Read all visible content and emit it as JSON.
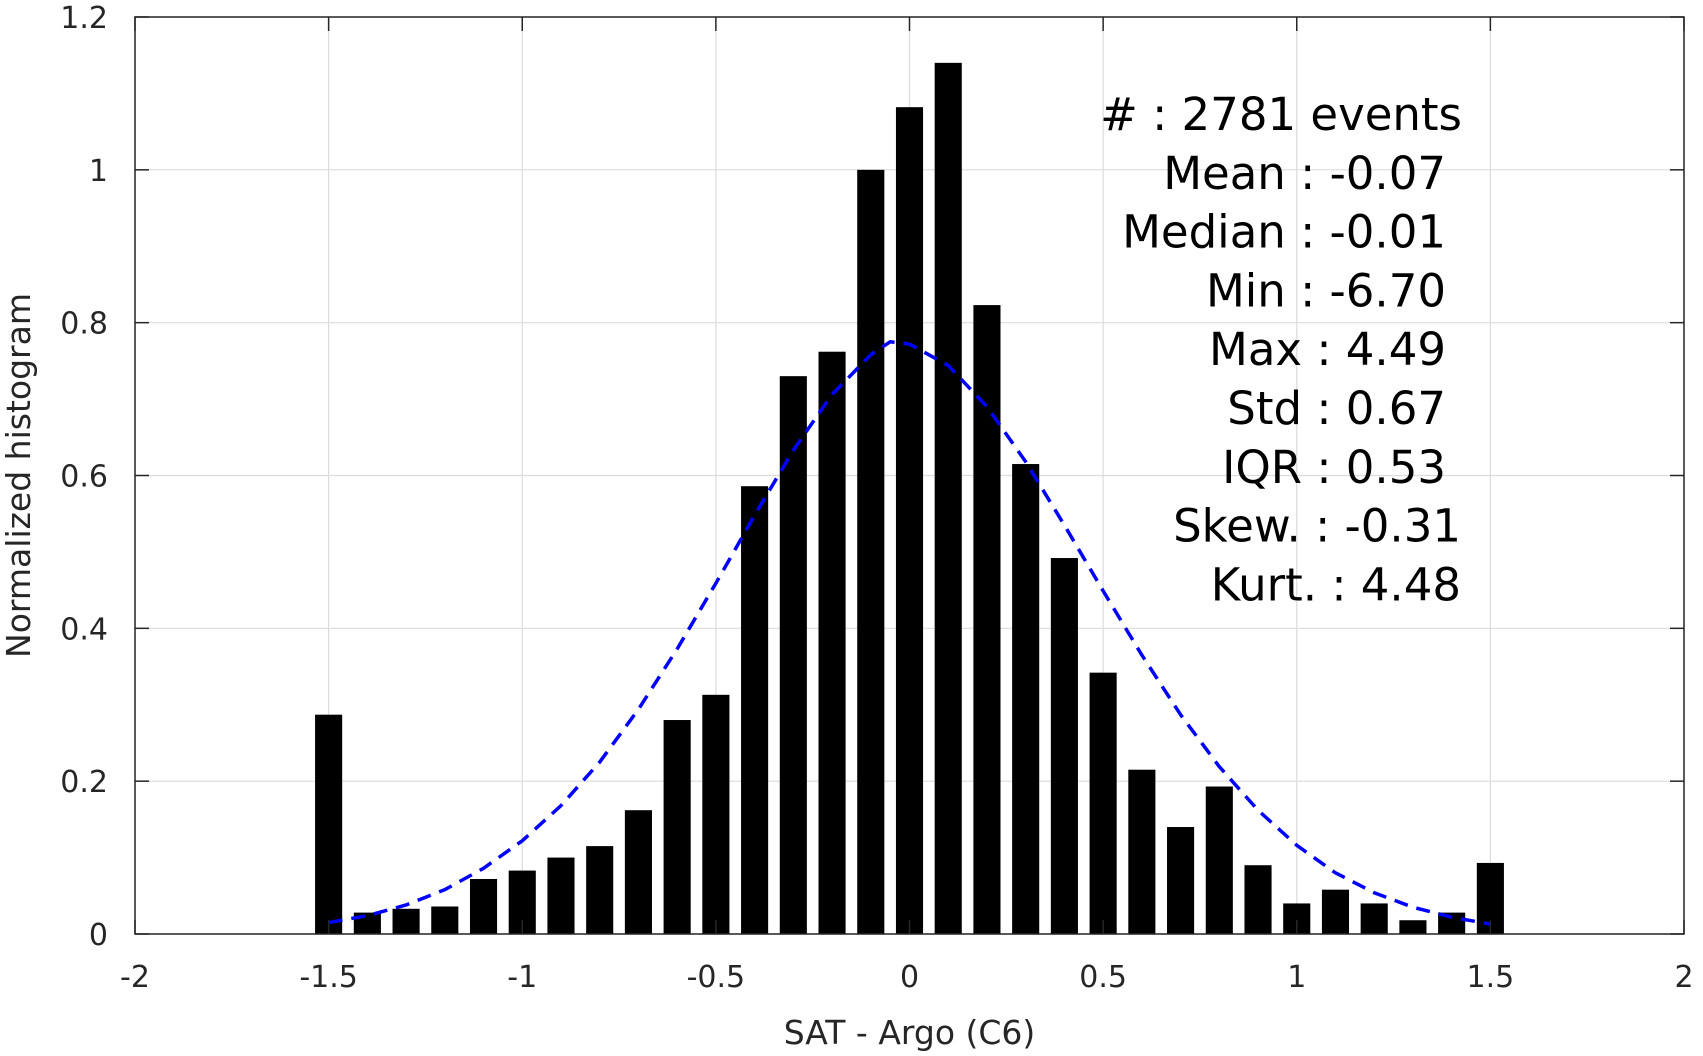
{
  "chart_data": {
    "type": "bar",
    "xlabel": "SAT - Argo (C6)",
    "ylabel": "Normalized histogram",
    "xlim": [
      -2,
      2
    ],
    "ylim": [
      0,
      1.2
    ],
    "grid": true,
    "x_ticks": [
      -2,
      -1.5,
      -1,
      -0.5,
      0,
      0.5,
      1,
      1.5,
      2
    ],
    "x_tick_labels": [
      "-2",
      "-1.5",
      "-1",
      "-0.5",
      "0",
      "0.5",
      "1",
      "1.5",
      "2"
    ],
    "y_ticks": [
      0,
      0.2,
      0.4,
      0.6,
      0.8,
      1,
      1.2
    ],
    "y_tick_labels": [
      "0",
      "0.2",
      "0.4",
      "0.6",
      "0.8",
      "1",
      "1.2"
    ],
    "bar_width": 0.07,
    "bar_color": "#000000",
    "series": [
      {
        "type": "bar",
        "x": [
          -1.5,
          -1.4,
          -1.3,
          -1.2,
          -1.1,
          -1.0,
          -0.9,
          -0.8,
          -0.7,
          -0.6,
          -0.5,
          -0.4,
          -0.3,
          -0.2,
          -0.1,
          0.0,
          0.1,
          0.2,
          0.3,
          0.4,
          0.5,
          0.6,
          0.7,
          0.8,
          0.9,
          1.0,
          1.1,
          1.2,
          1.3,
          1.4,
          1.5
        ],
        "values": [
          0.287,
          0.028,
          0.033,
          0.036,
          0.072,
          0.083,
          0.1,
          0.115,
          0.162,
          0.28,
          0.313,
          0.586,
          0.73,
          0.762,
          1.0,
          1.082,
          1.14,
          0.823,
          0.615,
          0.492,
          0.342,
          0.215,
          0.14,
          0.193,
          0.09,
          0.04,
          0.058,
          0.04,
          0.018,
          0.028,
          0.093
        ]
      },
      {
        "type": "line",
        "style": "dashed",
        "color": "#0000ff",
        "x": [
          -1.5,
          -1.4,
          -1.3,
          -1.2,
          -1.1,
          -1.0,
          -0.9,
          -0.8,
          -0.7,
          -0.6,
          -0.5,
          -0.4,
          -0.3,
          -0.2,
          -0.1,
          -0.05,
          0.0,
          0.1,
          0.2,
          0.3,
          0.4,
          0.5,
          0.6,
          0.7,
          0.8,
          0.9,
          1.0,
          1.1,
          1.2,
          1.3,
          1.4,
          1.5
        ],
        "values": [
          0.015,
          0.024,
          0.038,
          0.058,
          0.086,
          0.122,
          0.168,
          0.225,
          0.294,
          0.373,
          0.459,
          0.548,
          0.633,
          0.706,
          0.758,
          0.775,
          0.772,
          0.744,
          0.69,
          0.618,
          0.535,
          0.449,
          0.365,
          0.287,
          0.219,
          0.162,
          0.116,
          0.08,
          0.054,
          0.035,
          0.022,
          0.013
        ]
      }
    ],
    "annotations": [
      "#  : 2781 events",
      "Mean : -0.07",
      "Median : -0.01",
      "Min : -6.70",
      "Max : 4.49",
      "Std : 0.67",
      "IQR : 0.53",
      "Skew. : -0.31",
      "Kurt. : 4.48"
    ]
  }
}
